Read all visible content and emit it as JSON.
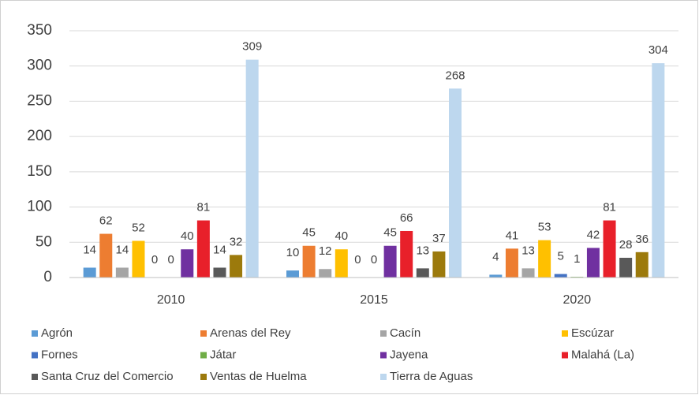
{
  "chart_data": {
    "type": "bar",
    "categories": [
      "2010",
      "2015",
      "2020"
    ],
    "series": [
      {
        "name": "Agrón",
        "color": "#5b9bd5",
        "values": [
          14,
          10,
          4
        ]
      },
      {
        "name": "Arenas del Rey",
        "color": "#ed7d31",
        "values": [
          62,
          45,
          41
        ]
      },
      {
        "name": "Cacín",
        "color": "#a5a5a5",
        "values": [
          14,
          12,
          13
        ]
      },
      {
        "name": "Escúzar",
        "color": "#ffc000",
        "values": [
          52,
          40,
          53
        ]
      },
      {
        "name": "Fornes",
        "color": "#4472c4",
        "values": [
          0,
          0,
          5
        ]
      },
      {
        "name": "Játar",
        "color": "#70ad47",
        "values": [
          0,
          0,
          1
        ]
      },
      {
        "name": "Jayena",
        "color": "#7030a0",
        "values": [
          40,
          45,
          42
        ]
      },
      {
        "name": "Malahá (La)",
        "color": "#e8202a",
        "values": [
          81,
          66,
          81
        ]
      },
      {
        "name": "Santa Cruz del Comercio",
        "color": "#595959",
        "values": [
          14,
          13,
          28
        ]
      },
      {
        "name": "Ventas de Huelma",
        "color": "#9c7a0c",
        "values": [
          32,
          37,
          36
        ]
      },
      {
        "name": "Tierra de Aguas",
        "color": "#bdd7ee",
        "values": [
          309,
          268,
          304
        ]
      }
    ],
    "ylim": [
      0,
      350
    ],
    "yticks": [
      0,
      50,
      100,
      150,
      200,
      250,
      300,
      350
    ],
    "grid": true
  }
}
